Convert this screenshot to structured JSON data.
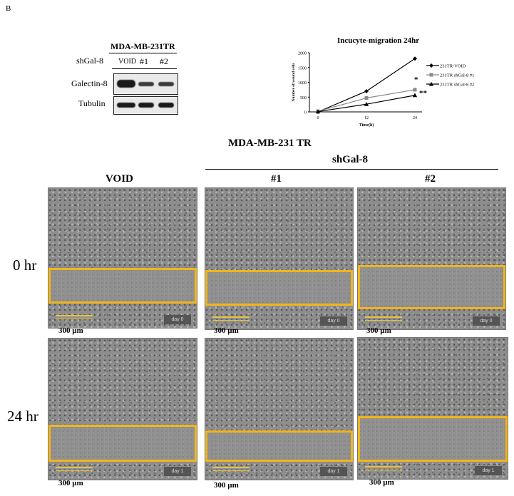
{
  "panel_letter": "B",
  "western_blot": {
    "title": "MDA-MB-231TR",
    "shrna_label": "shGal-8",
    "lanes": [
      "VOID",
      "#1",
      "#2"
    ],
    "rows": [
      "Galectin-8",
      "Tubulin"
    ]
  },
  "chart_data": {
    "type": "line",
    "title": "Incucyte-migration 24hr",
    "xlabel": "Time(h)",
    "ylabel": "Number of wound cells",
    "x": [
      0,
      12,
      24
    ],
    "xlim": [
      0,
      24
    ],
    "ylim": [
      0,
      2000
    ],
    "yticks": [
      0,
      500,
      1000,
      1500,
      2000
    ],
    "series": [
      {
        "name": "231TR-VOID",
        "values": [
          0,
          700,
          1800
        ],
        "color": "#000000",
        "marker": "diamond"
      },
      {
        "name": "231TR shGal-8 #1",
        "values": [
          20,
          470,
          750
        ],
        "color": "#8a8a8a",
        "marker": "square"
      },
      {
        "name": "231TR shGal-8 #2",
        "values": [
          10,
          260,
          560
        ],
        "color": "#000000",
        "marker": "triangle"
      }
    ],
    "annotations": [
      "*",
      "**"
    ],
    "legend_position": "right"
  },
  "figure": {
    "cell_line": "MDA-MB-231 TR",
    "group_label": "shGal-8",
    "columns": [
      "VOID",
      "#1",
      "#2"
    ],
    "rows": [
      "0 hr",
      "24 hr"
    ],
    "day_tags": [
      "day 0",
      "day 1"
    ],
    "scale_label": "300 µm"
  },
  "colors": {
    "wound_box": "#f2b51a",
    "scale_bar": "#e7c23b"
  }
}
